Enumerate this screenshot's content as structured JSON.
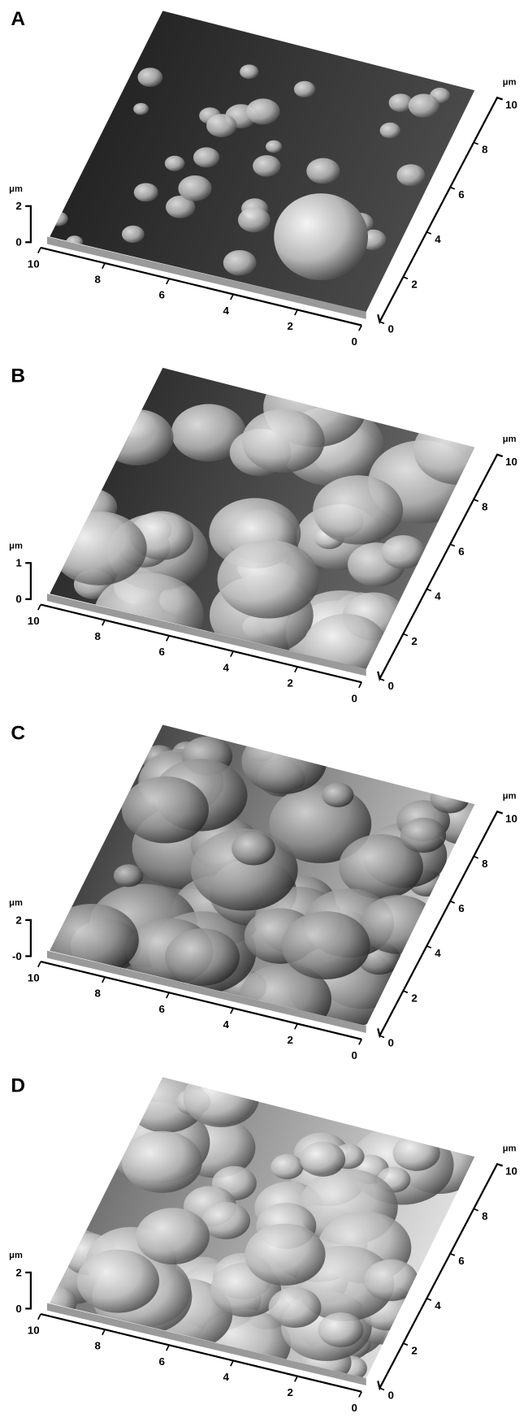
{
  "panels": [
    {
      "label": "A",
      "z_unit": "μm",
      "z_ticks": [
        "2",
        "0"
      ],
      "x_ticks": [
        "10",
        "8",
        "6",
        "4",
        "2",
        "0"
      ],
      "y_unit": "μm",
      "y_ticks": [
        "0",
        "2",
        "4",
        "6",
        "8",
        "10"
      ]
    },
    {
      "label": "B",
      "z_unit": "μm",
      "z_ticks": [
        "1",
        "0"
      ],
      "x_ticks": [
        "10",
        "8",
        "6",
        "4",
        "2",
        "0"
      ],
      "y_unit": "μm",
      "y_ticks": [
        "0",
        "2",
        "4",
        "6",
        "8",
        "10"
      ]
    },
    {
      "label": "C",
      "z_unit": "μm",
      "z_ticks": [
        "2",
        "-0"
      ],
      "x_ticks": [
        "10",
        "8",
        "6",
        "4",
        "2",
        "0"
      ],
      "y_unit": "μm",
      "y_ticks": [
        "0",
        "2",
        "4",
        "6",
        "8",
        "10"
      ]
    },
    {
      "label": "D",
      "z_unit": "μm",
      "z_ticks": [
        "2",
        "0"
      ],
      "x_ticks": [
        "10",
        "8",
        "6",
        "4",
        "2",
        "0"
      ],
      "y_unit": "μm",
      "y_ticks": [
        "0",
        "2",
        "4",
        "6",
        "8",
        "10"
      ]
    }
  ]
}
